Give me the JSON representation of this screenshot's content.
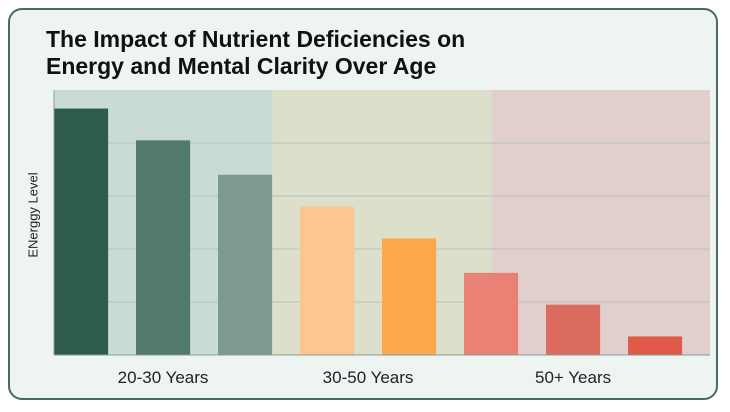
{
  "chart_data": {
    "type": "bar",
    "title": "The Impact of Nutrient Deficiencies on\nEnergy and Mental Clarity Over Age",
    "xlabel": "",
    "ylabel": "ENerggy Level",
    "ylim": [
      0,
      100
    ],
    "grid": true,
    "categories": [
      "20-30 Years",
      "30-50 Years",
      "50+ Years"
    ],
    "bars": [
      {
        "group": 0,
        "value": 93,
        "color": "#2e5c4b"
      },
      {
        "group": 0,
        "value": 81,
        "color": "#527a6c"
      },
      {
        "group": 0,
        "value": 68,
        "color": "#7c9a8e"
      },
      {
        "group": 1,
        "value": 56,
        "color": "#fcc68e"
      },
      {
        "group": 1,
        "value": 44,
        "color": "#fca84c"
      },
      {
        "group": 2,
        "value": 31,
        "color": "#e98174"
      },
      {
        "group": 2,
        "value": 19,
        "color": "#da6b5e"
      },
      {
        "group": 2,
        "value": 7,
        "color": "#e05a49"
      }
    ],
    "group_backgrounds": [
      "#c9dbd6",
      "#dcdfc9",
      "#e1cfcd"
    ]
  }
}
